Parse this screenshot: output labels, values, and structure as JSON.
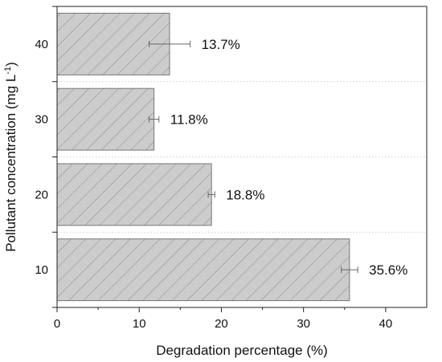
{
  "chart_data": {
    "type": "bar",
    "orientation": "horizontal",
    "categories": [
      "10",
      "20",
      "30",
      "40"
    ],
    "values": [
      35.6,
      18.8,
      11.8,
      13.7
    ],
    "errors": [
      1.0,
      0.4,
      0.6,
      2.5
    ],
    "value_labels": [
      "35.6%",
      "18.8%",
      "11.8%",
      "13.7%"
    ],
    "xlabel": "Degradation percentage (%)",
    "ylabel_main": "Pollutant concentration (mg L",
    "ylabel_sup": "-1",
    "ylabel_end": ")",
    "xlim": [
      0,
      45
    ],
    "xticks": [
      "0",
      "10",
      "20",
      "30",
      "40"
    ],
    "grid": "horizontal dotted separators",
    "bar_fill": "#cccccc",
    "bar_stroke": "#777777",
    "hatch_color": "#8a8a8a",
    "errorbar_color": "#666666"
  }
}
